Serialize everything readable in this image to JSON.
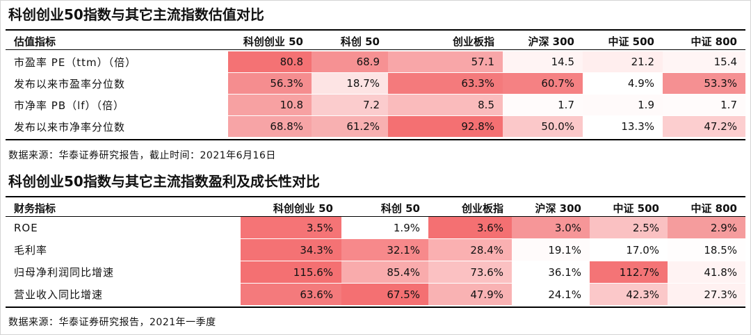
{
  "section1": {
    "title": "科创创业50指数与其它主流指数估值对比",
    "headers": [
      "估值指标",
      "科创创业 50",
      "科创 50",
      "创业板指",
      "沪深 300",
      "中证 500",
      "中证 800"
    ],
    "rows": [
      {
        "label": "市盈率 PE（ttm）（倍）",
        "values": [
          "80.8",
          "68.9",
          "57.1",
          "14.5",
          "21.2",
          "15.4"
        ],
        "colors": [
          "#f47274",
          "#f69193",
          "#f8a6a8",
          "#fff4f4",
          "#ffeeee",
          "#fff5f5"
        ]
      },
      {
        "label": "发布以来市盈率分位数",
        "values": [
          "56.3%",
          "18.7%",
          "63.3%",
          "60.7%",
          "4.9%",
          "53.3%"
        ],
        "colors": [
          "#f58d8f",
          "#fde4e4",
          "#f47a7c",
          "#f58183",
          "#ffffff",
          "#f59092"
        ]
      },
      {
        "label": "市净率 PB（lf）（倍）",
        "values": [
          "10.8",
          "7.2",
          "8.5",
          "1.7",
          "1.9",
          "1.7"
        ],
        "colors": [
          "#f7a1a2",
          "#fbcccd",
          "#fabbbc",
          "#fffbfb",
          "#fffafa",
          "#fffbfb"
        ]
      },
      {
        "label": "发布以来市净率分位数",
        "values": [
          "68.8%",
          "61.2%",
          "92.8%",
          "50.0%",
          "13.3%",
          "47.2%"
        ],
        "colors": [
          "#f7a4a6",
          "#f8b0b1",
          "#f47072",
          "#fbc8c9",
          "#ffffff",
          "#fccecf"
        ]
      }
    ]
  },
  "section1_source": "数据来源：华泰证券研究报告，截止时间：2021年6月16日",
  "section2": {
    "title": "科创创业50指数与其它主流指数盈利及成长性对比",
    "headers": [
      "财务指标",
      "科创创业 50",
      "科创 50",
      "创业板指",
      "沪深 300",
      "中证 500",
      "中证 800"
    ],
    "rows": [
      {
        "label": "ROE",
        "values": [
          "3.5%",
          "1.9%",
          "3.6%",
          "3.0%",
          "2.5%",
          "2.9%"
        ],
        "colors": [
          "#f57476",
          "#ffffff",
          "#f47072",
          "#f69698",
          "#fac1c2",
          "#f59c9d"
        ]
      },
      {
        "label": "毛利率",
        "values": [
          "34.3%",
          "32.1%",
          "28.4%",
          "19.1%",
          "17.0%",
          "18.5%"
        ],
        "colors": [
          "#f47274",
          "#f7898b",
          "#fab0b1",
          "#fffbfb",
          "#ffffff",
          "#fffdfd"
        ]
      },
      {
        "label": "归母净利润同比增速",
        "values": [
          "115.6%",
          "85.4%",
          "73.6%",
          "36.1%",
          "112.7%",
          "41.8%"
        ],
        "colors": [
          "#f47072",
          "#f9abac",
          "#fbc1c2",
          "#ffffff",
          "#f47476",
          "#fff3f3"
        ]
      },
      {
        "label": "营业收入同比增速",
        "values": [
          "63.6%",
          "67.5%",
          "47.9%",
          "24.1%",
          "42.3%",
          "27.3%"
        ],
        "colors": [
          "#f47a7c",
          "#f47072",
          "#f9b2b3",
          "#ffffff",
          "#fbc8c9",
          "#fff1f1"
        ]
      }
    ]
  },
  "section2_source": "数据来源：华泰证券研究报告，2021年一季度"
}
